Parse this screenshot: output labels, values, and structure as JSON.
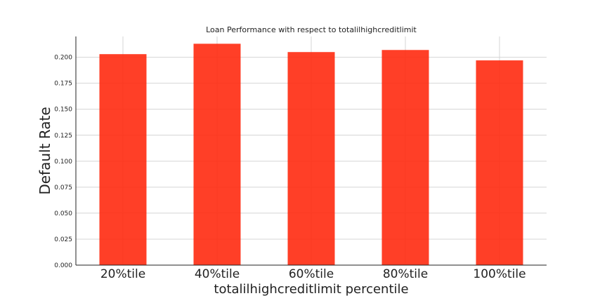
{
  "chart_data": {
    "type": "bar",
    "title": "Loan Performance with respect to totalilhighcreditlimit",
    "xlabel": "totalilhighcreditlimit percentile",
    "ylabel": "Default Rate",
    "categories": [
      "20%tile",
      "40%tile",
      "60%tile",
      "80%tile",
      "100%tile"
    ],
    "values": [
      0.203,
      0.213,
      0.205,
      0.207,
      0.197
    ],
    "ylim": [
      0,
      0.22
    ],
    "yticks": [
      0.0,
      0.025,
      0.05,
      0.075,
      0.1,
      0.125,
      0.15,
      0.175,
      0.2
    ],
    "ytick_labels": [
      "0.000",
      "0.025",
      "0.050",
      "0.075",
      "0.100",
      "0.125",
      "0.150",
      "0.175",
      "0.200"
    ],
    "grid": true,
    "bar_color": "#ff2a0f"
  }
}
